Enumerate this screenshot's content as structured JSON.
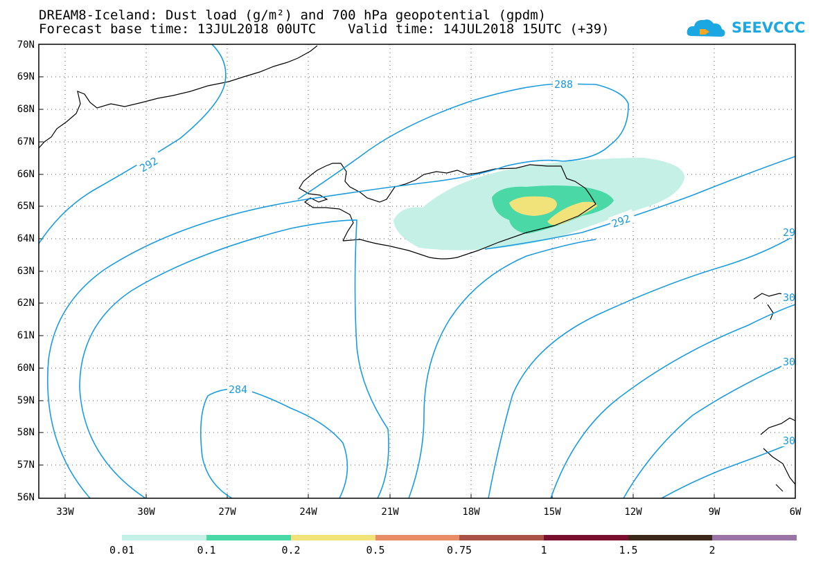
{
  "title": {
    "line1": "DREAM8-Iceland: Dust load (g/m²) and 700 hPa geopotential (gpdm)",
    "line2": "Forecast base time: 13JUL2018 00UTC    Valid time: 14JUL2018 15UTC (+39)"
  },
  "logo": {
    "text": "SEEVCCC",
    "icon": "cloud-icon",
    "color": "#1ba7e2"
  },
  "map": {
    "lat_labels": [
      "70N",
      "69N",
      "68N",
      "67N",
      "66N",
      "65N",
      "64N",
      "63N",
      "62N",
      "61N",
      "60N",
      "59N",
      "58N",
      "57N",
      "56N"
    ],
    "lon_labels": [
      "33W",
      "30W",
      "27W",
      "24W",
      "21W",
      "18W",
      "15W",
      "12W",
      "9W",
      "6W"
    ],
    "contour_color": "#1a9be0",
    "contour_labels": [
      "288",
      "292",
      "292",
      "284",
      "29",
      "30",
      "30",
      "30"
    ]
  },
  "colorbar": {
    "labels": [
      "0.01",
      "0.1",
      "0.2",
      "0.5",
      "0.75",
      "1",
      "1.5",
      "2"
    ],
    "colors": [
      "#c4f0e6",
      "#4ad8a6",
      "#f2e27a",
      "#e98d69",
      "#a85248",
      "#7a1030",
      "#3b2818",
      "#9a74a6"
    ]
  }
}
